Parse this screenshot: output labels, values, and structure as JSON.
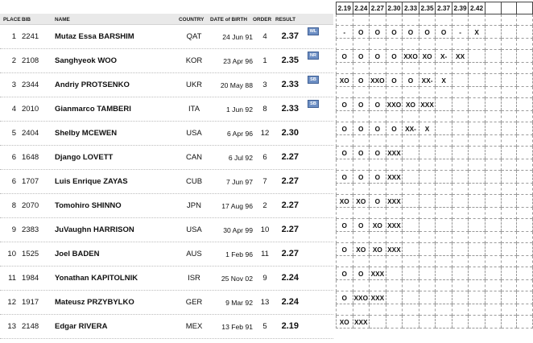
{
  "headers": {
    "place": "PLACE",
    "bib": "BIB",
    "name": "NAME",
    "country": "COUNTRY",
    "dob": "DATE of BIRTH",
    "order": "ORDER",
    "result": "RESULT"
  },
  "heights": [
    "2.19",
    "2.24",
    "2.27",
    "2.30",
    "2.33",
    "2.35",
    "2.37",
    "2.39",
    "2.42",
    "",
    "",
    ""
  ],
  "athletes": [
    {
      "place": "1",
      "bib": "2241",
      "first": "Mutaz Essa",
      "last": "BARSHIM",
      "country": "QAT",
      "dob": "24 Jun 91",
      "order": "4",
      "result": "2.37",
      "badge": "WL",
      "attempts": [
        "-",
        "O",
        "O",
        "O",
        "O",
        "O",
        "O",
        "-",
        "X",
        "",
        "",
        ""
      ]
    },
    {
      "place": "2",
      "bib": "2108",
      "first": "Sanghyeok",
      "last": "WOO",
      "country": "KOR",
      "dob": "23 Apr 96",
      "order": "1",
      "result": "2.35",
      "badge": "NR",
      "attempts": [
        "O",
        "O",
        "O",
        "O",
        "XXO",
        "XO",
        "X-",
        "XX",
        "",
        "",
        "",
        ""
      ]
    },
    {
      "place": "3",
      "bib": "2344",
      "first": "Andriy",
      "last": "PROTSENKO",
      "country": "UKR",
      "dob": "20 May 88",
      "order": "3",
      "result": "2.33",
      "badge": "SB",
      "attempts": [
        "XO",
        "O",
        "XXO",
        "O",
        "O",
        "XX-",
        "X",
        "",
        "",
        "",
        "",
        ""
      ]
    },
    {
      "place": "4",
      "bib": "2010",
      "first": "Gianmarco",
      "last": "TAMBERI",
      "country": "ITA",
      "dob": "1 Jun 92",
      "order": "8",
      "result": "2.33",
      "badge": "SB",
      "attempts": [
        "O",
        "O",
        "O",
        "XXO",
        "XO",
        "XXX",
        "",
        "",
        "",
        "",
        "",
        ""
      ]
    },
    {
      "place": "5",
      "bib": "2404",
      "first": "Shelby",
      "last": "MCEWEN",
      "country": "USA",
      "dob": "6 Apr 96",
      "order": "12",
      "result": "2.30",
      "badge": "",
      "attempts": [
        "O",
        "O",
        "O",
        "O",
        "XX-",
        "X",
        "",
        "",
        "",
        "",
        "",
        ""
      ]
    },
    {
      "place": "6",
      "bib": "1648",
      "first": "Django",
      "last": "LOVETT",
      "country": "CAN",
      "dob": "6 Jul 92",
      "order": "6",
      "result": "2.27",
      "badge": "",
      "attempts": [
        "O",
        "O",
        "O",
        "XXX",
        "",
        "",
        "",
        "",
        "",
        "",
        "",
        ""
      ]
    },
    {
      "place": "6",
      "bib": "1707",
      "first": "Luis Enrique",
      "last": "ZAYAS",
      "country": "CUB",
      "dob": "7 Jun 97",
      "order": "7",
      "result": "2.27",
      "badge": "",
      "attempts": [
        "O",
        "O",
        "O",
        "XXX",
        "",
        "",
        "",
        "",
        "",
        "",
        "",
        ""
      ]
    },
    {
      "place": "8",
      "bib": "2070",
      "first": "Tomohiro",
      "last": "SHINNO",
      "country": "JPN",
      "dob": "17 Aug 96",
      "order": "2",
      "result": "2.27",
      "badge": "",
      "attempts": [
        "XO",
        "XO",
        "O",
        "XXX",
        "",
        "",
        "",
        "",
        "",
        "",
        "",
        ""
      ]
    },
    {
      "place": "9",
      "bib": "2383",
      "first": "JuVaughn",
      "last": "HARRISON",
      "country": "USA",
      "dob": "30 Apr 99",
      "order": "10",
      "result": "2.27",
      "badge": "",
      "attempts": [
        "O",
        "O",
        "XO",
        "XXX",
        "",
        "",
        "",
        "",
        "",
        "",
        "",
        ""
      ]
    },
    {
      "place": "10",
      "bib": "1525",
      "first": "Joel",
      "last": "BADEN",
      "country": "AUS",
      "dob": "1 Feb 96",
      "order": "11",
      "result": "2.27",
      "badge": "",
      "attempts": [
        "O",
        "XO",
        "XO",
        "XXX",
        "",
        "",
        "",
        "",
        "",
        "",
        "",
        ""
      ]
    },
    {
      "place": "11",
      "bib": "1984",
      "first": "Yonathan",
      "last": "KAPITOLNIK",
      "country": "ISR",
      "dob": "25 Nov 02",
      "order": "9",
      "result": "2.24",
      "badge": "",
      "attempts": [
        "O",
        "O",
        "XXX",
        "",
        "",
        "",
        "",
        "",
        "",
        "",
        "",
        ""
      ]
    },
    {
      "place": "12",
      "bib": "1917",
      "first": "Mateusz",
      "last": "PRZYBYLKO",
      "country": "GER",
      "dob": "9 Mar 92",
      "order": "13",
      "result": "2.24",
      "badge": "",
      "attempts": [
        "O",
        "XXO",
        "XXX",
        "",
        "",
        "",
        "",
        "",
        "",
        "",
        "",
        ""
      ]
    },
    {
      "place": "13",
      "bib": "2148",
      "first": "Edgar",
      "last": "RIVERA",
      "country": "MEX",
      "dob": "13 Feb 91",
      "order": "5",
      "result": "2.19",
      "badge": "",
      "attempts": [
        "XO",
        "XXX",
        "",
        "",
        "",
        "",
        "",
        "",
        "",
        "",
        "",
        ""
      ]
    }
  ]
}
